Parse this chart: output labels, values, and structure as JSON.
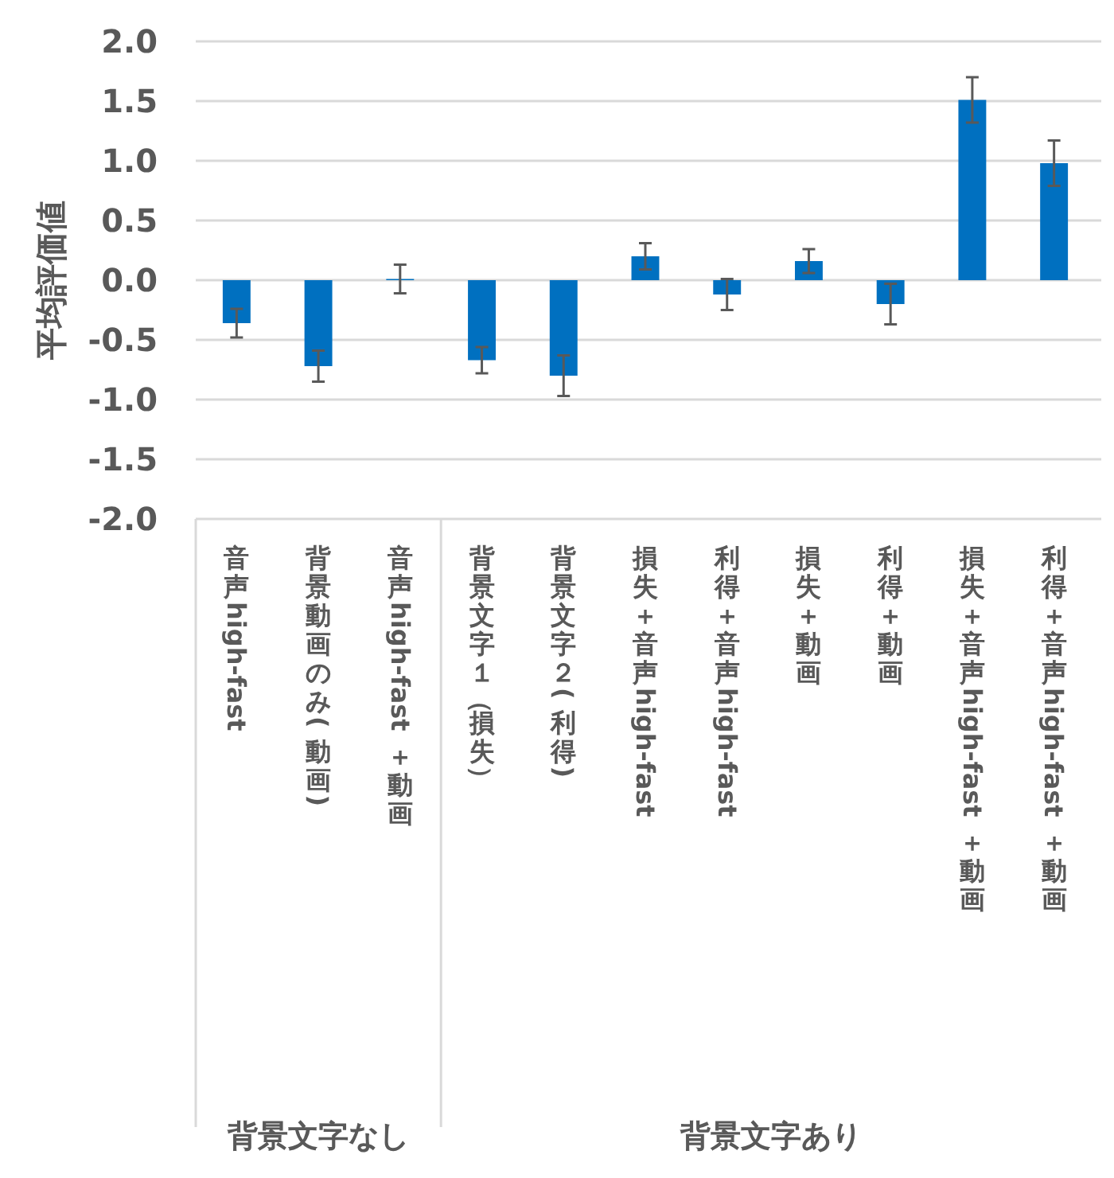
{
  "chart_data": {
    "type": "bar",
    "ylabel": "平均評価値",
    "categories": [
      "音声high-fast",
      "背景動画のみ(動画)",
      "音声high-fast＋動画",
      "背景文字１（損失）",
      "背景文字２(利得)",
      "損失＋音声high-fast",
      "利得＋音声high-fast",
      "損失＋動画",
      "利得＋動画",
      "損失＋音声high-fast＋動画",
      "利得＋音声high-fast＋動画"
    ],
    "values": [
      -0.36,
      -0.72,
      0.01,
      -0.67,
      -0.8,
      0.2,
      -0.12,
      0.16,
      -0.2,
      1.51,
      0.98
    ],
    "errors": [
      0.12,
      0.13,
      0.12,
      0.11,
      0.17,
      0.11,
      0.13,
      0.1,
      0.17,
      0.19,
      0.19
    ],
    "color": "#0070c0",
    "ylim": [
      -2,
      2
    ],
    "yticks": [
      {
        "value": -2,
        "label": "-2.0"
      },
      {
        "value": -1.5,
        "label": "-1.5"
      },
      {
        "value": -1,
        "label": "-1.0"
      },
      {
        "value": -0.5,
        "label": "-0.5"
      },
      {
        "value": 0,
        "label": "0.0"
      },
      {
        "value": 0.5,
        "label": "0.5"
      },
      {
        "value": 1,
        "label": "1.0"
      },
      {
        "value": 1.5,
        "label": "1.5"
      },
      {
        "value": 2,
        "label": "2.0"
      }
    ],
    "grid": "y",
    "annotations": [
      "背景文字なし",
      "背景文字あり"
    ]
  }
}
